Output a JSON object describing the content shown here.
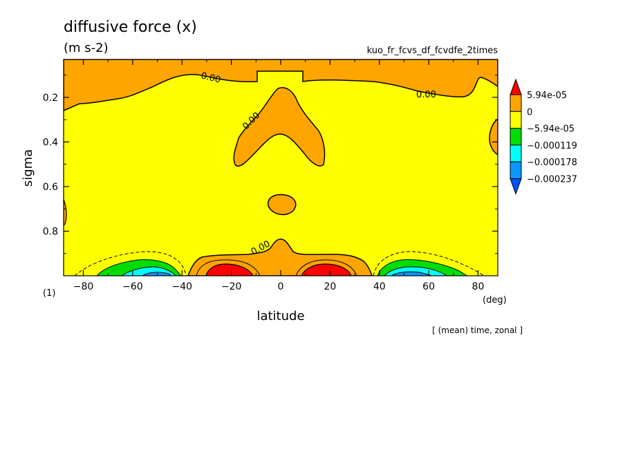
{
  "chart_data": {
    "type": "heatmap",
    "title": "diffusive force (x)",
    "units": "(m s-2)",
    "run_name": "kuo_fr_fcvs_df_fcvdfe_2times",
    "panel_label": "(1)",
    "xlabel": "latitude",
    "xunit": "(deg)",
    "ylabel": "sigma",
    "footer": "[ (mean) time, zonal ]",
    "xlim": [
      -88,
      88
    ],
    "ylim": [
      1.0,
      0.03
    ],
    "x_ticks": [
      -80,
      -60,
      -40,
      -20,
      0,
      20,
      40,
      60,
      80
    ],
    "y_ticks": [
      0.2,
      0.4,
      0.6,
      0.8
    ],
    "contour_label": "0.00",
    "colorbar": {
      "levels": [
        "5.94e-05",
        "0",
        "-5.94e-05",
        "-0.000119",
        "-0.000178",
        "-0.000237"
      ],
      "colors": [
        "#ff0000",
        "#ffa500",
        "#ffff00",
        "#00dd00",
        "#00ffff",
        "#0a96ff",
        "#0050ff"
      ]
    },
    "regions": [
      {
        "value": "0 to 5.94e-05",
        "color": "#ffa500",
        "desc": "upper band near sigma 0.1-0.2"
      },
      {
        "value": "0 to 5.94e-05",
        "color": "#ffa500",
        "desc": "arch centred at equator, sigma 0.15-0.45"
      },
      {
        "value": "0 to 5.94e-05",
        "color": "#ffa500",
        "desc": "small blob near equator, sigma 0.65-0.75"
      },
      {
        "value": "0 to 5.94e-05",
        "color": "#ffa500",
        "desc": "near-surface band -35 to 35 deg"
      },
      {
        "value": ">5.94e-05",
        "color": "#ff0000",
        "desc": "surface maxima near -20 and 20 deg"
      },
      {
        "value": "<-5.94e-05",
        "color": "#00dd00",
        "desc": "surface minima near -60 and 60 deg"
      }
    ]
  }
}
